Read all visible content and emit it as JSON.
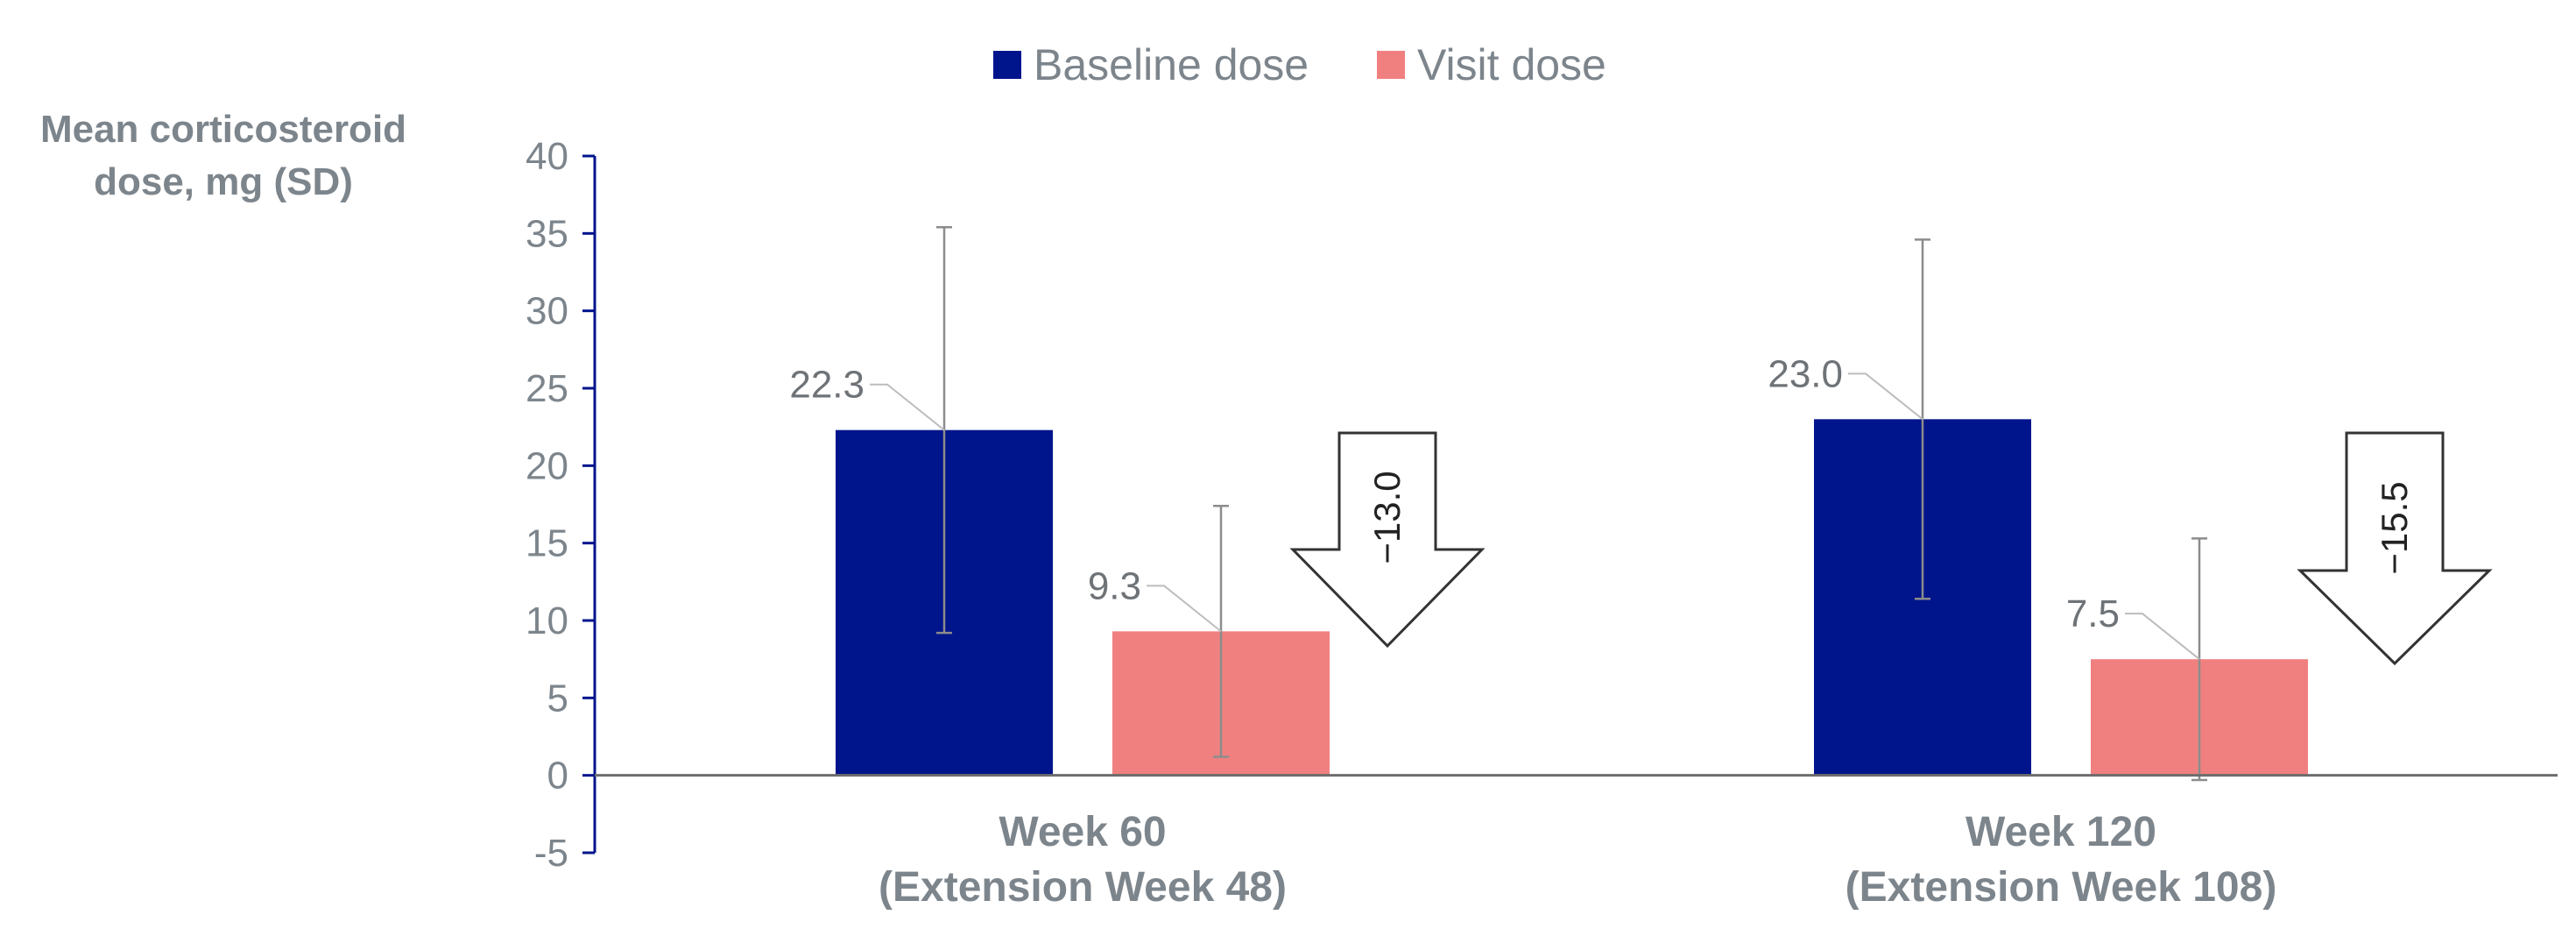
{
  "chart_data": {
    "type": "bar",
    "ylabel_lines": [
      "Mean corticosteroid",
      "dose, mg (SD)"
    ],
    "ylim": [
      -5,
      40
    ],
    "yticks": [
      40,
      35,
      30,
      25,
      20,
      15,
      10,
      5,
      0,
      -5
    ],
    "categories": [
      {
        "line1": "Week 60",
        "line2": "(Extension Week 48)"
      },
      {
        "line1": "Week 120",
        "line2": "(Extension Week 108)"
      }
    ],
    "series": [
      {
        "name": "Baseline dose",
        "color": "#00148c",
        "values": [
          22.3,
          23.0
        ],
        "labels": [
          "22.3",
          "23.0"
        ],
        "err_low": [
          9.2,
          11.4
        ],
        "err_high": [
          35.4,
          34.6
        ]
      },
      {
        "name": "Visit dose",
        "color": "#f08080",
        "values": [
          9.3,
          7.5
        ],
        "labels": [
          "9.3",
          "7.5"
        ],
        "err_low": [
          1.2,
          -0.3
        ],
        "err_high": [
          17.4,
          15.3
        ]
      }
    ],
    "changes": [
      "−13.0",
      "−15.5"
    ],
    "axis_color": "#00148c",
    "legend_position": "top-center",
    "grid": false
  }
}
